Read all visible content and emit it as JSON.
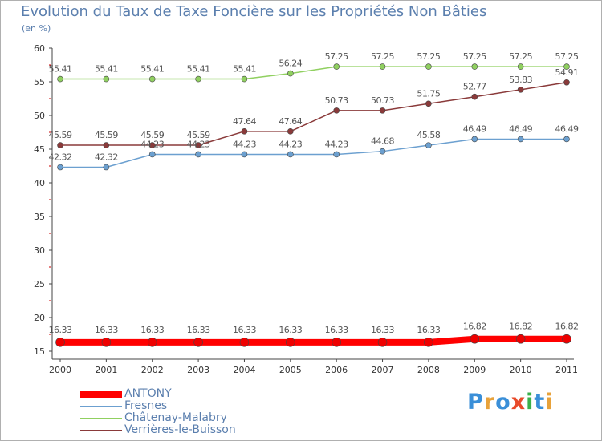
{
  "title": "Evolution du Taux de Taxe Foncière sur les Propriétés Non Bâties",
  "unit_label": "(en %)",
  "logo": {
    "text": "Proxiti",
    "letter_colors": [
      "#3a8fd8",
      "#e8a23a",
      "#3a8fd8",
      "#e84a2a",
      "#3ab04a",
      "#3a8fd8",
      "#e8a23a"
    ]
  },
  "chart_data": {
    "type": "line",
    "x": [
      "2000",
      "2001",
      "2002",
      "2003",
      "2004",
      "2005",
      "2006",
      "2007",
      "2008",
      "2009",
      "2010",
      "2011"
    ],
    "ylim": [
      15,
      60
    ],
    "yticks": [
      "15",
      "20",
      "25",
      "30",
      "35",
      "40",
      "45",
      "50",
      "55",
      "60"
    ],
    "grid": false,
    "legend_position": "bottom-left",
    "series": [
      {
        "name": "ANTONY",
        "color": "#ff0000",
        "values": [
          16.33,
          16.33,
          16.33,
          16.33,
          16.33,
          16.33,
          16.33,
          16.33,
          16.33,
          16.82,
          16.82,
          16.82
        ],
        "labels": [
          "16.33",
          "16.33",
          "16.33",
          "16.33",
          "16.33",
          "16.33",
          "16.33",
          "16.33",
          "16.33",
          "16.82",
          "16.82",
          "16.82"
        ]
      },
      {
        "name": "Fresnes",
        "color": "#6ca0d0",
        "values": [
          42.32,
          42.32,
          44.23,
          44.23,
          44.23,
          44.23,
          44.23,
          44.68,
          45.58,
          46.49,
          46.49,
          46.49
        ],
        "labels": [
          "42.32",
          "42.32",
          "44.23",
          "44.23",
          "44.23",
          "44.23",
          "44.23",
          "44.68",
          "45.58",
          "46.49",
          "46.49",
          "46.49"
        ]
      },
      {
        "name": "Châtenay-Malabry",
        "color": "#90d060",
        "values": [
          55.41,
          55.41,
          55.41,
          55.41,
          55.41,
          56.24,
          57.25,
          57.25,
          57.25,
          57.25,
          57.25,
          57.25
        ],
        "labels": [
          "55.41",
          "55.41",
          "55.41",
          "55.41",
          "55.41",
          "56.24",
          "57.25",
          "57.25",
          "57.25",
          "57.25",
          "57.25",
          "57.25"
        ]
      },
      {
        "name": "Verrières-le-Buisson",
        "color": "#8a3a3a",
        "values": [
          45.59,
          45.59,
          45.59,
          45.59,
          47.64,
          47.64,
          50.73,
          50.73,
          51.75,
          52.77,
          53.83,
          54.91
        ],
        "labels": [
          "45.59",
          "45.59",
          "45.59",
          "45.59",
          "47.64",
          "47.64",
          "50.73",
          "50.73",
          "51.75",
          "52.77",
          "53.83",
          "54.91"
        ]
      }
    ]
  }
}
